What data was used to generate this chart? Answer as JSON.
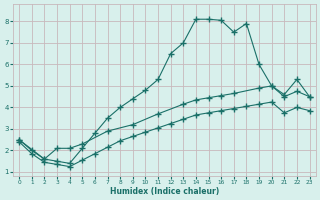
{
  "xlabel": "Humidex (Indice chaleur)",
  "bg_color": "#d8f0ec",
  "grid_color": "#c8b8bc",
  "line_color": "#1a7068",
  "xlim": [
    -0.5,
    23.5
  ],
  "ylim": [
    0.8,
    8.8
  ],
  "xticks": [
    0,
    1,
    2,
    3,
    4,
    5,
    6,
    7,
    8,
    9,
    10,
    11,
    12,
    13,
    14,
    15,
    16,
    17,
    18,
    19,
    20,
    21,
    22,
    23
  ],
  "yticks": [
    1,
    2,
    3,
    4,
    5,
    6,
    7,
    8
  ],
  "line1_x": [
    0,
    1,
    2,
    3,
    4,
    5,
    6,
    7,
    8,
    9,
    10,
    11,
    12,
    13,
    14,
    15,
    16,
    17,
    18,
    19,
    20,
    21,
    22,
    23
  ],
  "line1_y": [
    2.5,
    2.0,
    1.6,
    1.5,
    1.4,
    2.1,
    2.8,
    3.5,
    4.0,
    4.4,
    4.8,
    5.3,
    6.5,
    7.0,
    8.1,
    8.1,
    8.05,
    7.5,
    7.9,
    6.0,
    5.0,
    4.6,
    5.3,
    4.5
  ],
  "line2_x": [
    0,
    2,
    3,
    4,
    5,
    7,
    9,
    11,
    13,
    14,
    15,
    16,
    17,
    19,
    20,
    21,
    22,
    23
  ],
  "line2_y": [
    2.5,
    1.6,
    2.1,
    2.1,
    2.3,
    2.9,
    3.2,
    3.7,
    4.15,
    4.35,
    4.45,
    4.55,
    4.65,
    4.9,
    5.0,
    4.5,
    4.75,
    4.5
  ],
  "line3_x": [
    0,
    1,
    2,
    3,
    4,
    5,
    6,
    7,
    8,
    9,
    10,
    11,
    12,
    13,
    14,
    15,
    16,
    17,
    18,
    19,
    20,
    21,
    22,
    23
  ],
  "line3_y": [
    2.4,
    1.85,
    1.45,
    1.35,
    1.25,
    1.55,
    1.85,
    2.15,
    2.45,
    2.65,
    2.85,
    3.05,
    3.25,
    3.45,
    3.65,
    3.75,
    3.85,
    3.95,
    4.05,
    4.15,
    4.25,
    3.75,
    4.0,
    3.85
  ]
}
